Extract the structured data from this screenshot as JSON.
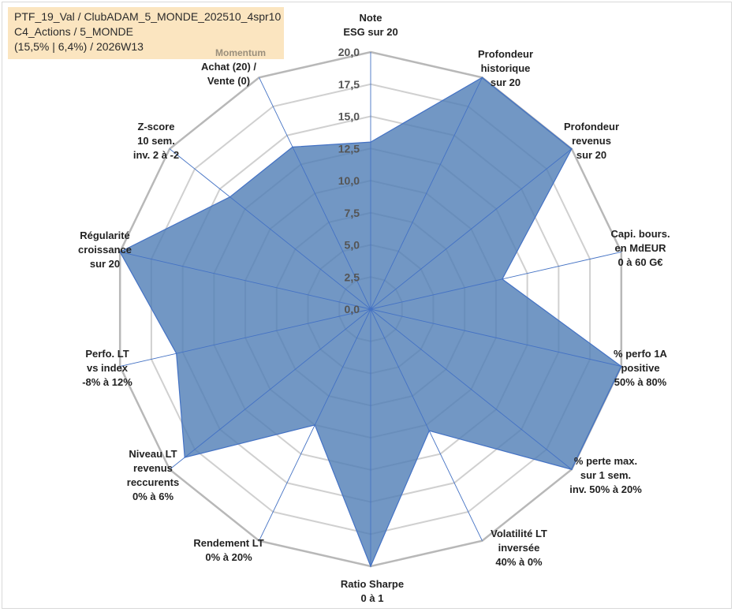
{
  "info": {
    "line1": "PTF_19_Val / ClubADAM_5_MONDE_202510_4spr10",
    "line2": "C4_Actions / 5_MONDE",
    "line3": "(15,5% | 6,4%) / 2026W13"
  },
  "momentum_label": "Momentum",
  "chart_data": {
    "type": "radar",
    "rmin": 0,
    "rmax": 20,
    "ticks": [
      "0,0",
      "2,5",
      "5,0",
      "7,5",
      "10,0",
      "12,5",
      "15,0",
      "17,5",
      "20,0"
    ],
    "tick_values": [
      0,
      2.5,
      5,
      7.5,
      10,
      12.5,
      15,
      17.5,
      20
    ],
    "axes": [
      {
        "lines": [
          "Note",
          "ESG sur 20"
        ],
        "value": 13
      },
      {
        "lines": [
          "Profondeur",
          "historique",
          "sur 20"
        ],
        "value": 20
      },
      {
        "lines": [
          "Profondeur",
          "revenus",
          "sur 20"
        ],
        "value": 20
      },
      {
        "lines": [
          "Capi. bours.",
          "en MdEUR",
          "0 à 60 G€"
        ],
        "value": 10.5
      },
      {
        "lines": [
          "% perfo 1A",
          "positive",
          "50% à 80%"
        ],
        "value": 20
      },
      {
        "lines": [
          "% perte max.",
          "sur 1 sem.",
          "inv. 50% à 20%"
        ],
        "value": 20
      },
      {
        "lines": [
          "Volatilité LT",
          "inversée",
          "40% à 0%"
        ],
        "value": 10.5
      },
      {
        "lines": [
          "Ratio Sharpe",
          "0 à 1"
        ],
        "value": 20
      },
      {
        "lines": [
          "Rendement LT",
          "0% à 20%"
        ],
        "value": 10
      },
      {
        "lines": [
          "Niveau LT",
          "revenus",
          "reccurents",
          "0% à 6%"
        ],
        "value": 18.5
      },
      {
        "lines": [
          "Perfo. LT",
          "vs index",
          "-8% à 12%"
        ],
        "value": 15.5
      },
      {
        "lines": [
          "Régularité",
          "croissance",
          "sur 20"
        ],
        "value": 20
      },
      {
        "lines": [
          "Z-score",
          "10 sem.",
          "inv. 2 à -2"
        ],
        "value": 14
      },
      {
        "lines": [
          "Achat (20) /",
          "Vente (0)"
        ],
        "value": 14
      }
    ],
    "series": [
      {
        "name": "PTF_19_Val",
        "color": "#4f7db5"
      }
    ],
    "grid": true
  }
}
